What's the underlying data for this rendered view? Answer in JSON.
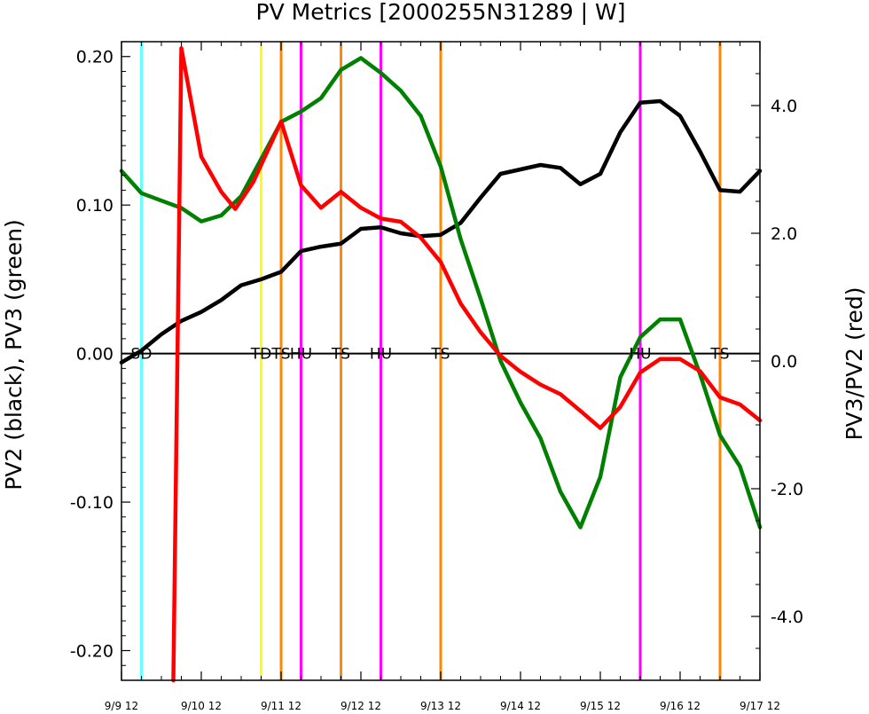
{
  "chart_data": {
    "type": "line",
    "title": "PV Metrics [2000255N31289 | W]",
    "ylabel_left": "PV2 (black), PV3 (green)",
    "ylabel_right": "PV3/PV2 (red)",
    "x_range": [
      0,
      32
    ],
    "y_left_range": [
      -0.22,
      0.21
    ],
    "y_right_range": [
      -5,
      5
    ],
    "x_ticks": [
      {
        "x": 0,
        "label": "9/9 12"
      },
      {
        "x": 4,
        "label": "9/10 12"
      },
      {
        "x": 8,
        "label": "9/11 12"
      },
      {
        "x": 12,
        "label": "9/12 12"
      },
      {
        "x": 16,
        "label": "9/13 12"
      },
      {
        "x": 20,
        "label": "9/14 12"
      },
      {
        "x": 24,
        "label": "9/15 12"
      },
      {
        "x": 28,
        "label": "9/16 12"
      },
      {
        "x": 32,
        "label": "9/17 12"
      }
    ],
    "y_left_ticks": [
      {
        "v": 0.2,
        "label": "0.20"
      },
      {
        "v": 0.1,
        "label": "0.10"
      },
      {
        "v": 0.0,
        "label": "0.00"
      },
      {
        "v": -0.1,
        "label": "-0.10"
      },
      {
        "v": -0.2,
        "label": "-0.20"
      }
    ],
    "y_right_ticks": [
      {
        "v": 4,
        "label": "4.0"
      },
      {
        "v": 2,
        "label": "2.0"
      },
      {
        "v": 0,
        "label": "0.0"
      },
      {
        "v": -2,
        "label": "-2.0"
      },
      {
        "v": -4,
        "label": "-4.0"
      }
    ],
    "reference_line": {
      "axis": "left",
      "value": 0.0
    },
    "series": [
      {
        "key": "pv2",
        "color": "#000000",
        "axis": "left",
        "x": [
          0,
          1,
          2,
          3,
          4,
          5,
          6,
          7,
          8,
          9,
          10,
          11,
          12,
          13,
          14,
          15,
          16,
          17,
          18,
          19,
          20,
          21,
          22,
          23,
          24,
          25,
          26,
          27,
          28,
          29,
          30,
          31,
          32
        ],
        "y": [
          -0.006,
          0.002,
          0.013,
          0.022,
          0.028,
          0.036,
          0.046,
          0.05,
          0.055,
          0.069,
          0.072,
          0.074,
          0.084,
          0.085,
          0.081,
          0.079,
          0.08,
          0.088,
          0.105,
          0.121,
          0.124,
          0.127,
          0.125,
          0.114,
          0.121,
          0.149,
          0.169,
          0.17,
          0.16,
          0.136,
          0.11,
          0.109,
          0.123
        ]
      },
      {
        "key": "pv3",
        "color": "#008000",
        "axis": "left",
        "x": [
          0,
          1,
          2,
          3,
          4,
          5,
          6,
          7,
          8,
          9,
          10,
          11,
          12,
          13,
          14,
          15,
          16,
          17,
          18,
          19,
          20,
          21,
          22,
          23,
          24,
          25,
          26,
          27,
          28,
          29,
          30,
          31,
          32
        ],
        "y": [
          0.123,
          0.108,
          0.103,
          0.098,
          0.089,
          0.093,
          0.106,
          0.131,
          0.156,
          0.163,
          0.172,
          0.191,
          0.199,
          0.189,
          0.177,
          0.16,
          0.126,
          0.077,
          0.037,
          -0.005,
          -0.033,
          -0.057,
          -0.093,
          -0.117,
          -0.083,
          -0.016,
          0.011,
          0.023,
          0.023,
          -0.014,
          -0.055,
          -0.076,
          -0.117
        ]
      },
      {
        "key": "ratio",
        "color": "#ff0000",
        "axis": "right",
        "x": [
          2.6,
          3,
          4,
          5,
          5.7,
          6.6,
          8,
          9,
          10,
          11,
          12,
          13,
          14,
          15,
          16,
          17,
          18,
          19,
          20,
          21,
          22,
          23,
          24,
          25,
          26,
          27,
          28,
          29,
          30,
          31,
          32
        ],
        "y": [
          -5,
          4.9,
          3.2,
          2.65,
          2.38,
          2.8,
          3.75,
          2.75,
          2.4,
          2.65,
          2.4,
          2.23,
          2.18,
          1.93,
          1.55,
          0.9,
          0.45,
          0.08,
          -0.17,
          -0.37,
          -0.52,
          -0.78,
          -1.05,
          -0.72,
          -0.18,
          0.03,
          0.03,
          -0.16,
          -0.57,
          -0.68,
          -0.93
        ]
      }
    ],
    "stage_markers": [
      {
        "x": 1.0,
        "color": "#66ffff",
        "label": "SD"
      },
      {
        "x": 7.0,
        "color": "#ffff00",
        "label": "TD"
      },
      {
        "x": 8.0,
        "color": "#ff8800",
        "label": "TS"
      },
      {
        "x": 9.0,
        "color": "#ff00ff",
        "label": "HU"
      },
      {
        "x": 11.0,
        "color": "#ff8800",
        "label": "TS"
      },
      {
        "x": 13.0,
        "color": "#ff00ff",
        "label": "HU"
      },
      {
        "x": 16.0,
        "color": "#ff8800",
        "label": "TS"
      },
      {
        "x": 26.0,
        "color": "#ff00ff",
        "label": "HU"
      },
      {
        "x": 30.0,
        "color": "#ff8800",
        "label": "TS"
      }
    ]
  }
}
